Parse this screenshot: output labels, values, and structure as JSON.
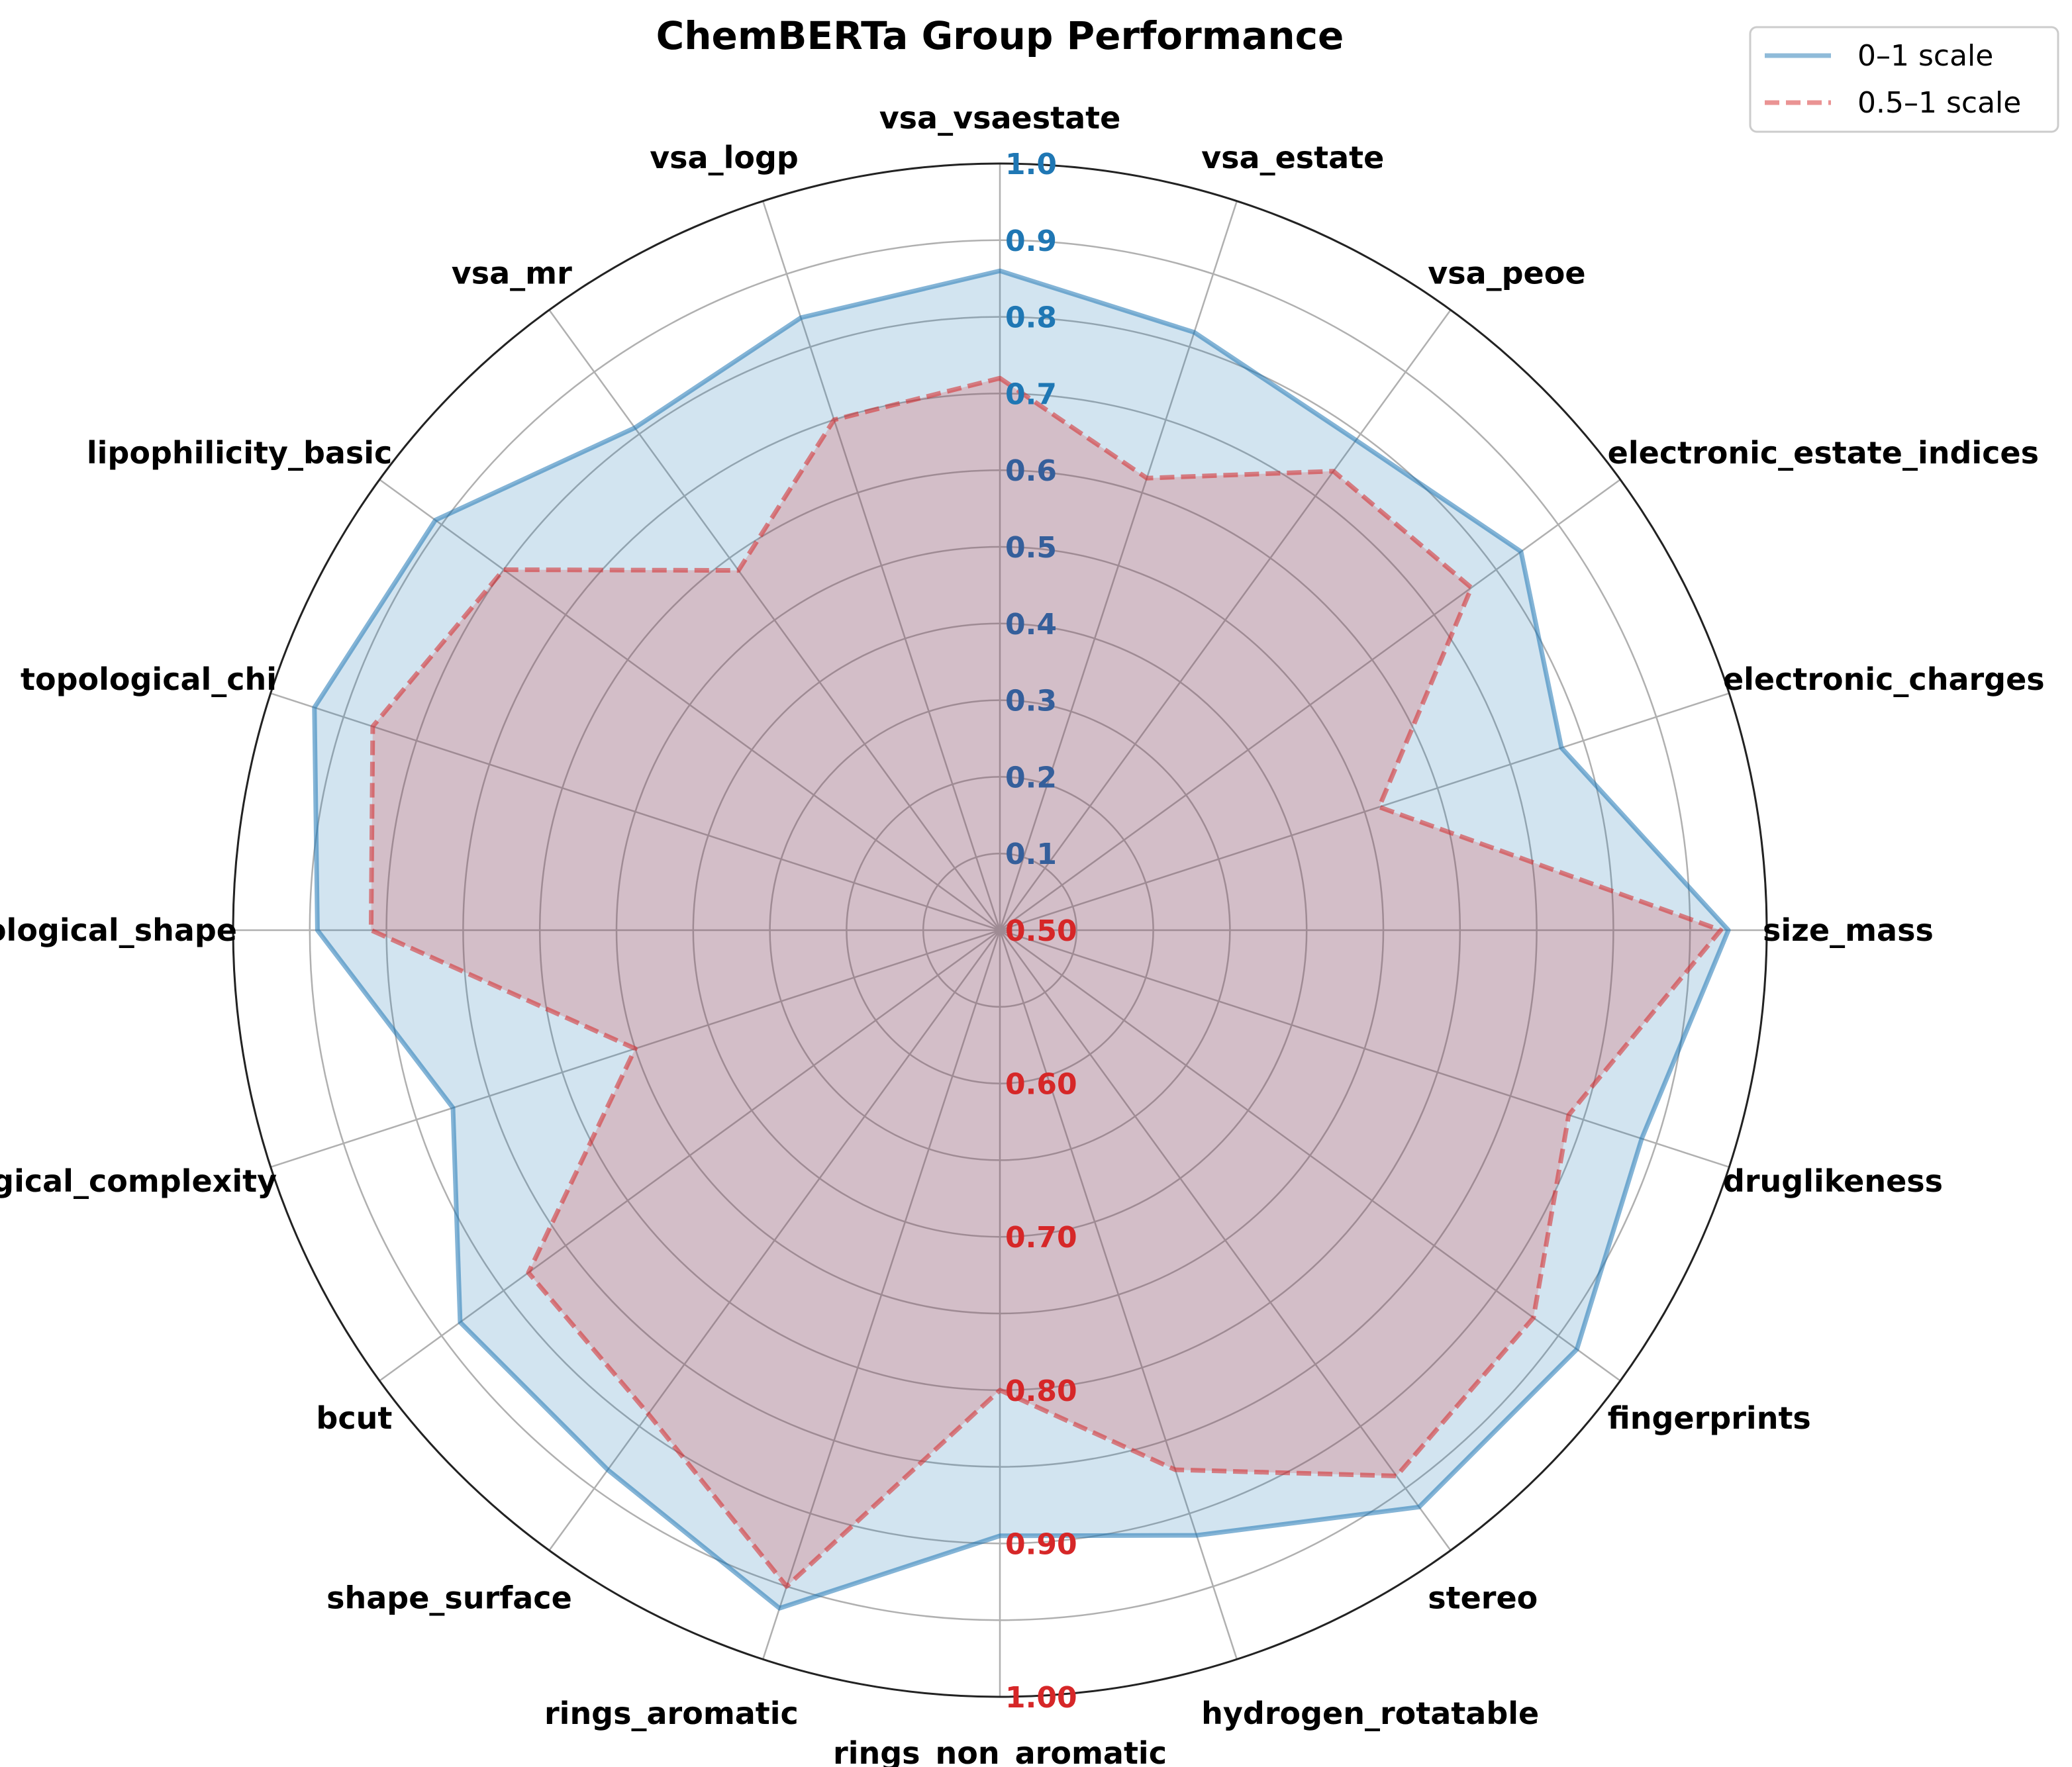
{
  "chart_data": {
    "type": "radar",
    "title": "ChemBERTa Group Performance",
    "categories": [
      "vsa_vsaestate",
      "vsa_estate",
      "vsa_peoe",
      "electronic_estate_indices",
      "electronic_charges",
      "size_mass",
      "druglikeness",
      "fingerprints",
      "stereo",
      "hydrogen_rotatable",
      "rings_non_aromatic",
      "rings_aromatic",
      "shape_surface",
      "bcut",
      "topological_complexity",
      "topological_shape",
      "topological_chi",
      "lipophilicity_basic",
      "vsa_mr",
      "vsa_logp"
    ],
    "series": [
      {
        "name": "0–1 scale",
        "color": "#1f77b4",
        "line_style": "solid",
        "scale_range": [
          0,
          1
        ],
        "values": [
          0.86,
          0.82,
          0.79,
          0.84,
          0.77,
          0.95,
          0.88,
          0.93,
          0.93,
          0.83,
          0.79,
          0.93,
          0.87,
          0.87,
          0.75,
          0.89,
          0.94,
          0.91,
          0.81,
          0.84
        ]
      },
      {
        "name": "0.5–1 scale",
        "color": "#d62728",
        "line_style": "dashed",
        "scale_range": [
          0.5,
          1
        ],
        "values": [
          0.86,
          0.81,
          0.87,
          0.88,
          0.76,
          0.97,
          0.89,
          0.93,
          0.94,
          0.87,
          0.8,
          0.95,
          0.89,
          0.88,
          0.75,
          0.91,
          0.93,
          0.9,
          0.79,
          0.85
        ]
      }
    ],
    "radial_ticks_blue": [
      "0.1",
      "0.2",
      "0.3",
      "0.4",
      "0.5",
      "0.6",
      "0.7",
      "0.8",
      "0.9",
      "1.0"
    ],
    "radial_ticks_red": [
      "0.50",
      "0.60",
      "0.70",
      "0.80",
      "0.90",
      "1.00"
    ],
    "grid": true,
    "legend_position": "top-right"
  }
}
